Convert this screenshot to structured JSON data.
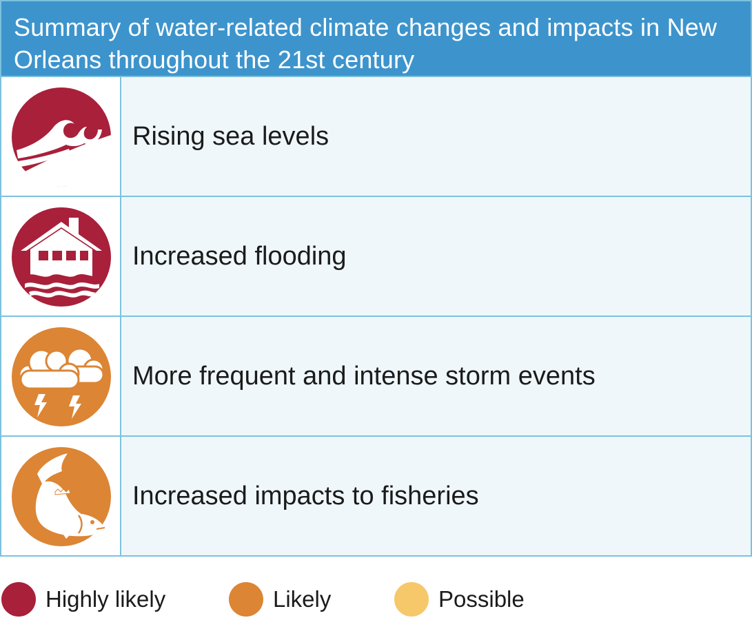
{
  "title": "Summary of water-related climate changes and impacts in New Orleans throughout the 21st century",
  "rows": [
    {
      "label": "Rising sea levels",
      "icon": "sea-wave-icon",
      "likelihood": "Highly likely"
    },
    {
      "label": "Increased flooding",
      "icon": "flooded-house-icon",
      "likelihood": "Highly likely"
    },
    {
      "label": "More frequent and intense storm events",
      "icon": "storm-cloud-icon",
      "likelihood": "Likely"
    },
    {
      "label": "Increased impacts to fisheries",
      "icon": "fish-icon",
      "likelihood": "Likely"
    }
  ],
  "legend": [
    {
      "label": "Highly likely",
      "color": "#a8203a"
    },
    {
      "label": "Likely",
      "color": "#dc8535"
    },
    {
      "label": "Possible",
      "color": "#f6c86a"
    }
  ],
  "colors": {
    "header_bg": "#3d94cc",
    "border": "#7cc2de",
    "row_bg": "#eff7fa",
    "highly_likely": "#a8203a",
    "likely": "#dc8535"
  }
}
